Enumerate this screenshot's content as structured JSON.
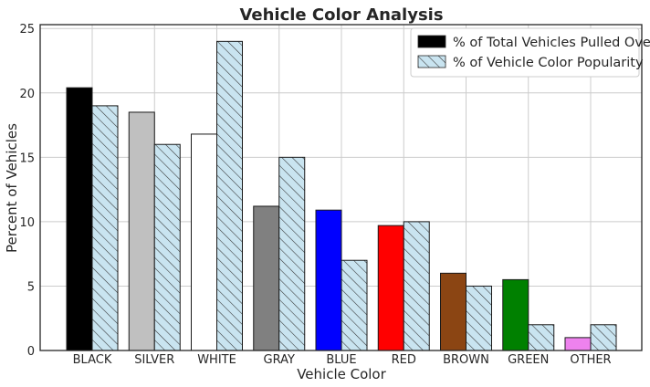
{
  "chart_data": {
    "type": "bar",
    "title": "Vehicle Color Analysis",
    "xlabel": "Vehicle Color",
    "ylabel": "Percent of Vehicles",
    "ylim": [
      0,
      25.3
    ],
    "yticks": [
      0,
      5,
      10,
      15,
      20,
      25
    ],
    "grid": true,
    "legend_position": "top-right",
    "categories": [
      "BLACK",
      "SILVER",
      "WHITE",
      "GRAY",
      "BLUE",
      "RED",
      "BROWN",
      "GREEN",
      "OTHER"
    ],
    "series": [
      {
        "name": "% of Total Vehicles Pulled Over",
        "values": [
          20.4,
          18.5,
          16.8,
          11.2,
          10.9,
          9.7,
          6.0,
          5.5,
          1.0
        ],
        "colors": [
          "#000000",
          "#c0c0c0",
          "#ffffff",
          "#808080",
          "#0000ff",
          "#ff0000",
          "#8b4513",
          "#008000",
          "#ee82ee"
        ],
        "legend_color": "#000000"
      },
      {
        "name": "% of Vehicle Color Popularity",
        "values": [
          19.0,
          16.0,
          24.0,
          15.0,
          7.0,
          10.0,
          5.0,
          2.0,
          2.0
        ],
        "color": "#c9e4f0",
        "pattern": "hatch"
      }
    ]
  }
}
